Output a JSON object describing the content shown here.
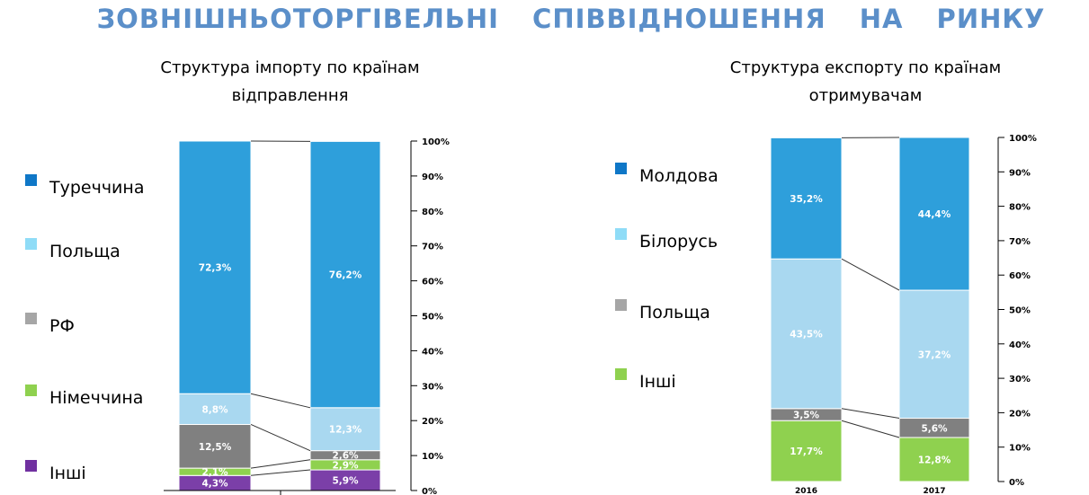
{
  "page_title": "ЗОВНІШНЬОТОРГІВЕЛЬНІ СПІВВІДНОШЕННЯ НА РИНКУ",
  "chart_data": [
    {
      "type": "bar",
      "stacked": true,
      "title": "Структура імпорту по країнам відправлення",
      "categories": [
        "",
        ""
      ],
      "yticks": [
        "0%",
        "10%",
        "20%",
        "30%",
        "40%",
        "50%",
        "60%",
        "70%",
        "80%",
        "90%",
        "100%"
      ],
      "ylim": [
        0,
        100
      ],
      "series": [
        {
          "name": "Інші",
          "color": "#7b3fa8",
          "values": [
            4.3,
            5.9
          ],
          "labels": [
            "4,3%",
            "5,9%"
          ]
        },
        {
          "name": "Німеччина",
          "color": "#8fd14f",
          "values": [
            2.1,
            2.9
          ],
          "labels": [
            "2,1%",
            "2,9%"
          ]
        },
        {
          "name": "РФ",
          "color": "#808080",
          "values": [
            12.5,
            2.6
          ],
          "labels": [
            "12,5%",
            "2,6%"
          ]
        },
        {
          "name": "Польща",
          "color": "#a9d8f0",
          "values": [
            8.8,
            12.3
          ],
          "labels": [
            "8,8%",
            "12,3%"
          ]
        },
        {
          "name": "Туреччина",
          "color": "#2e9fdb",
          "values": [
            72.3,
            76.2
          ],
          "labels": [
            "72,3%",
            "76,2%"
          ]
        }
      ],
      "legend": [
        {
          "name": "Туреччина",
          "color": "#0f77c7"
        },
        {
          "name": "Польща",
          "color": "#8fdcf7"
        },
        {
          "name": "РФ",
          "color": "#a6a6a6"
        },
        {
          "name": "Німеччина",
          "color": "#8fd14f"
        },
        {
          "name": "Інші",
          "color": "#7030a0"
        }
      ]
    },
    {
      "type": "bar",
      "stacked": true,
      "title": "Структура експорту по країнам отримувачам",
      "categories": [
        "2016",
        "2017"
      ],
      "yticks": [
        "0%",
        "10%",
        "20%",
        "30%",
        "40%",
        "50%",
        "60%",
        "70%",
        "80%",
        "90%",
        "100%"
      ],
      "ylim": [
        0,
        100
      ],
      "series": [
        {
          "name": "Інші",
          "color": "#8fd14f",
          "values": [
            17.7,
            12.8
          ],
          "labels": [
            "17,7%",
            "12,8%"
          ]
        },
        {
          "name": "Польща",
          "color": "#808080",
          "values": [
            3.5,
            5.6
          ],
          "labels": [
            "3,5%",
            "5,6%"
          ]
        },
        {
          "name": "Білорусь",
          "color": "#a9d8f0",
          "values": [
            43.5,
            37.2
          ],
          "labels": [
            "43,5%",
            "37,2%"
          ]
        },
        {
          "name": "Молдова",
          "color": "#2e9fdb",
          "values": [
            35.2,
            44.4
          ],
          "labels": [
            "35,2%",
            "44,4%"
          ]
        }
      ],
      "legend": [
        {
          "name": "Молдова",
          "color": "#0f77c7"
        },
        {
          "name": "Білорусь",
          "color": "#8fdcf7"
        },
        {
          "name": "Польща",
          "color": "#a6a6a6"
        },
        {
          "name": "Інші",
          "color": "#8fd14f"
        }
      ]
    }
  ]
}
